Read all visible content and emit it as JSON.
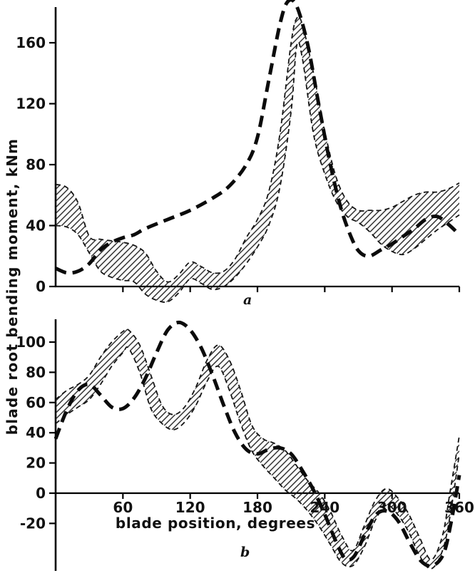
{
  "figure": {
    "ylabel": "blade root bending moment, kNm",
    "xlabel": "blade position, degrees",
    "panel_a_label": "a",
    "panel_b_label": "b"
  },
  "chart_data": [
    {
      "type": "line",
      "panel": "a",
      "xlim": [
        0,
        360
      ],
      "ylim": [
        -15,
        190
      ],
      "xticks": [
        60,
        120,
        180,
        240,
        300,
        360
      ],
      "yticks": [
        0,
        40,
        80,
        120,
        160
      ],
      "grid": false,
      "legend": "none",
      "series": [
        {
          "name": "bold-dashed-curve",
          "style": "bold-dashed",
          "x": [
            0,
            10,
            20,
            30,
            40,
            50,
            60,
            70,
            80,
            100,
            120,
            140,
            155,
            170,
            180,
            190,
            200,
            207,
            215,
            225,
            235,
            245,
            255,
            265,
            272,
            280,
            290,
            300,
            310,
            320,
            330,
            340,
            350,
            360
          ],
          "y": [
            12,
            9,
            10,
            15,
            24,
            29,
            32,
            34,
            38,
            44,
            50,
            58,
            66,
            80,
            98,
            135,
            172,
            187,
            184,
            158,
            118,
            80,
            50,
            30,
            22,
            20,
            24,
            28,
            33,
            38,
            44,
            46,
            41,
            34
          ]
        }
      ],
      "band": {
        "name": "hatched-band",
        "style": "thin-dashed-envelope-hatched",
        "x": [
          0,
          10,
          20,
          30,
          40,
          50,
          60,
          70,
          80,
          90,
          100,
          110,
          120,
          130,
          140,
          150,
          160,
          170,
          180,
          190,
          200,
          210,
          215,
          220,
          230,
          240,
          250,
          260,
          270,
          280,
          290,
          300,
          310,
          320,
          330,
          340,
          350,
          360
        ],
        "upper": [
          67,
          65,
          55,
          33,
          31,
          30,
          29,
          27,
          22,
          10,
          3,
          8,
          16,
          13,
          9,
          10,
          18,
          32,
          44,
          62,
          100,
          160,
          176,
          172,
          140,
          102,
          72,
          56,
          50,
          50,
          50,
          52,
          56,
          60,
          62,
          62,
          64,
          68
        ],
        "lower": [
          40,
          39,
          34,
          22,
          10,
          6,
          4,
          3,
          -5,
          -9,
          -10,
          -4,
          5,
          2,
          -2,
          0,
          6,
          15,
          26,
          40,
          65,
          115,
          158,
          150,
          100,
          74,
          56,
          46,
          42,
          36,
          28,
          23,
          21,
          25,
          31,
          37,
          42,
          47
        ]
      }
    },
    {
      "type": "line",
      "panel": "b",
      "xlim": [
        0,
        360
      ],
      "ylim": [
        -52,
        115
      ],
      "xticks": [
        60,
        120,
        180,
        240,
        300,
        360
      ],
      "yticks": [
        -20,
        0,
        20,
        40,
        60,
        80,
        100
      ],
      "grid": false,
      "legend": "none",
      "series": [
        {
          "name": "bold-dashed-curve",
          "style": "bold-dashed",
          "x": [
            0,
            10,
            20,
            30,
            40,
            50,
            60,
            70,
            80,
            90,
            100,
            110,
            120,
            130,
            140,
            150,
            160,
            170,
            180,
            190,
            200,
            210,
            220,
            230,
            240,
            250,
            258,
            266,
            276,
            286,
            296,
            306,
            316,
            326,
            336,
            346,
            353,
            360
          ],
          "y": [
            36,
            55,
            68,
            72,
            65,
            57,
            56,
            63,
            76,
            93,
            108,
            113,
            108,
            96,
            78,
            58,
            40,
            29,
            26,
            29,
            30,
            26,
            15,
            2,
            -14,
            -32,
            -43,
            -42,
            -27,
            -14,
            -12,
            -19,
            -33,
            -45,
            -48,
            -40,
            -18,
            12
          ]
        }
      ],
      "band": {
        "name": "hatched-band",
        "style": "thin-dashed-envelope-hatched",
        "x": [
          0,
          10,
          20,
          30,
          40,
          50,
          60,
          65,
          75,
          85,
          95,
          105,
          115,
          125,
          135,
          145,
          155,
          165,
          175,
          185,
          195,
          205,
          215,
          225,
          235,
          245,
          255,
          265,
          275,
          285,
          295,
          305,
          315,
          325,
          335,
          345,
          352,
          360
        ],
        "upper": [
          62,
          68,
          72,
          78,
          90,
          100,
          107,
          108,
          98,
          78,
          58,
          52,
          57,
          70,
          88,
          98,
          88,
          68,
          45,
          36,
          33,
          28,
          18,
          8,
          0,
          -12,
          -28,
          -38,
          -22,
          -5,
          3,
          -3,
          -14,
          -30,
          -44,
          -28,
          2,
          38
        ],
        "lower": [
          46,
          52,
          57,
          62,
          72,
          84,
          93,
          96,
          80,
          56,
          46,
          42,
          47,
          58,
          74,
          84,
          68,
          46,
          28,
          18,
          10,
          2,
          -4,
          -12,
          -22,
          -34,
          -46,
          -48,
          -36,
          -18,
          -8,
          -14,
          -26,
          -42,
          -50,
          -38,
          -14,
          26
        ]
      }
    }
  ]
}
